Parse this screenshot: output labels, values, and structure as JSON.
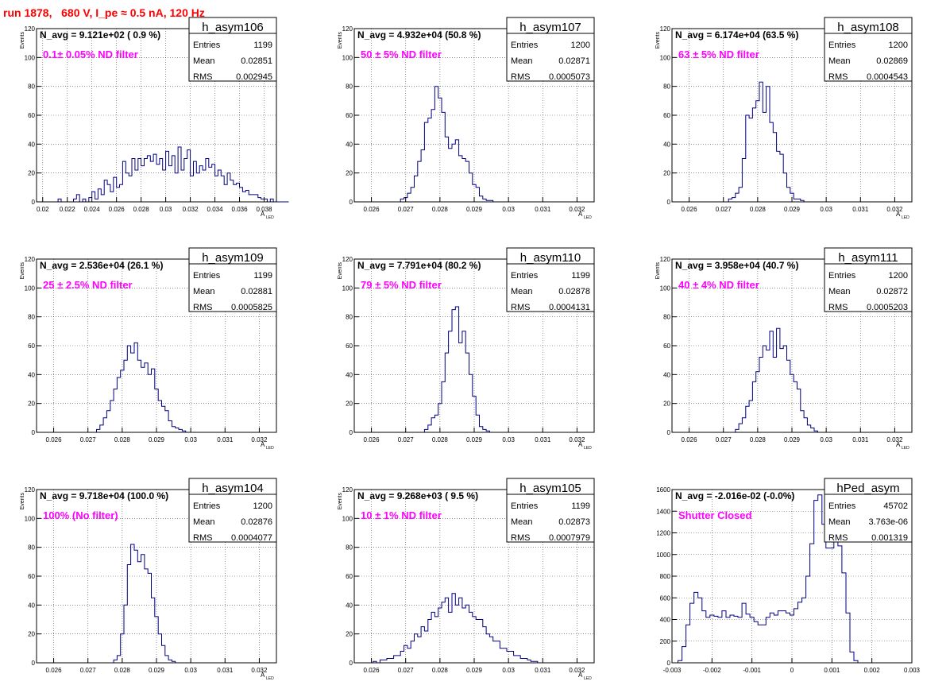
{
  "header": {
    "run_title": "run 1878,   680 V, I_pe ≈ 0.5 nA, 120 Hz"
  },
  "colors": {
    "title_text": "#ff0000",
    "annotation_text": "#ff00ff",
    "histogram_line": "#000080",
    "grid": "#000000"
  },
  "chart_data": [
    {
      "type": "histogram",
      "hist_name": "h_asym106",
      "stats": {
        "Entries": "1199",
        "Mean": "0.02851",
        "RMS": "0.002945"
      },
      "navg_label": "N_avg = 9.121e+02 ( 0.9 %)",
      "annotation": "0.1± 0.05% ND filter",
      "ylabel": "Events",
      "xlim": [
        0.0195,
        0.039
      ],
      "ylim": [
        0,
        120
      ],
      "xticks": [
        0.02,
        0.022,
        0.024,
        0.026,
        0.028,
        0.03,
        0.032,
        0.034,
        0.036,
        0.038
      ],
      "xtick_labels": [
        "0.02",
        "0.022",
        "0.024",
        "0.026",
        "0.028",
        "0.03",
        "0.032",
        "0.034",
        "0.036",
        "0.038"
      ],
      "yticks": [
        0,
        20,
        40,
        60,
        80,
        100,
        120
      ],
      "bin_start": 0.0205,
      "bin_width": 0.00025,
      "counts": [
        0,
        0,
        0,
        2,
        0,
        0,
        0,
        0,
        2,
        5,
        0,
        2,
        0,
        3,
        7,
        2,
        9,
        5,
        15,
        12,
        7,
        17,
        10,
        12,
        28,
        20,
        18,
        30,
        22,
        30,
        25,
        30,
        32,
        28,
        33,
        26,
        30,
        22,
        35,
        25,
        32,
        20,
        38,
        22,
        30,
        36,
        18,
        28,
        20,
        25,
        22,
        30,
        24,
        26,
        18,
        22,
        18,
        12,
        20,
        15,
        12,
        13,
        10,
        7,
        8,
        5,
        5,
        5,
        3,
        2,
        2,
        0,
        2,
        0,
        0,
        0,
        0,
        0
      ],
      "xlabel_main": "A",
      "xlabel_sub": "LED"
    },
    {
      "type": "histogram",
      "hist_name": "h_asym107",
      "stats": {
        "Entries": "1200",
        "Mean": "0.02871",
        "RMS": "0.0005073"
      },
      "navg_label": "N_avg = 4.932e+04 (50.8 %)",
      "annotation": "50 ± 5% ND filter",
      "ylabel": "Events",
      "xlim": [
        0.0255,
        0.0325
      ],
      "ylim": [
        0,
        120
      ],
      "xticks": [
        0.026,
        0.027,
        0.028,
        0.029,
        0.03,
        0.031,
        0.032
      ],
      "xtick_labels": [
        "0.026",
        "0.027",
        "0.028",
        "0.029",
        "0.03",
        "0.031",
        "0.032"
      ],
      "yticks": [
        0,
        20,
        40,
        60,
        80,
        100,
        120
      ],
      "bin_start": 0.02685,
      "bin_width": 0.0001,
      "counts": [
        2,
        3,
        6,
        10,
        18,
        28,
        36,
        55,
        58,
        64,
        80,
        72,
        62,
        45,
        37,
        40,
        43,
        32,
        30,
        28,
        20,
        12,
        10,
        4,
        2,
        1,
        1
      ],
      "xlabel_main": "A",
      "xlabel_sub": "LED"
    },
    {
      "type": "histogram",
      "hist_name": "h_asym108",
      "stats": {
        "Entries": "1200",
        "Mean": "0.02869",
        "RMS": "0.0004543"
      },
      "navg_label": "N_avg = 6.174e+04 (63.5 %)",
      "annotation": "63 ± 5% ND filter",
      "ylabel": "Events",
      "xlim": [
        0.0255,
        0.0325
      ],
      "ylim": [
        0,
        120
      ],
      "xticks": [
        0.026,
        0.027,
        0.028,
        0.029,
        0.03,
        0.031,
        0.032
      ],
      "xtick_labels": [
        "0.026",
        "0.027",
        "0.028",
        "0.029",
        "0.03",
        "0.031",
        "0.032"
      ],
      "yticks": [
        0,
        20,
        40,
        60,
        80,
        100,
        120
      ],
      "bin_start": 0.02715,
      "bin_width": 0.0001,
      "counts": [
        2,
        3,
        6,
        10,
        30,
        60,
        58,
        65,
        70,
        83,
        62,
        80,
        55,
        48,
        35,
        33,
        20,
        10,
        6,
        2,
        2,
        1
      ],
      "xlabel_main": "A",
      "xlabel_sub": "LED"
    },
    {
      "type": "histogram",
      "hist_name": "h_asym109",
      "stats": {
        "Entries": "1199",
        "Mean": "0.02881",
        "RMS": "0.0005825"
      },
      "navg_label": "N_avg = 2.536e+04 (26.1 %)",
      "annotation": "25 ± 2.5% ND filter",
      "ylabel": "Events",
      "xlim": [
        0.0255,
        0.0325
      ],
      "ylim": [
        0,
        120
      ],
      "xticks": [
        0.026,
        0.027,
        0.028,
        0.029,
        0.03,
        0.031,
        0.032
      ],
      "xtick_labels": [
        "0.026",
        "0.027",
        "0.028",
        "0.029",
        "0.03",
        "0.031",
        "0.032"
      ],
      "yticks": [
        0,
        20,
        40,
        60,
        80,
        100,
        120
      ],
      "bin_start": 0.02725,
      "bin_width": 0.0001,
      "counts": [
        2,
        5,
        10,
        15,
        22,
        30,
        38,
        43,
        50,
        60,
        55,
        62,
        50,
        45,
        48,
        40,
        44,
        30,
        22,
        18,
        15,
        8,
        4,
        3,
        2,
        1
      ],
      "xlabel_main": "A",
      "xlabel_sub": "LED"
    },
    {
      "type": "histogram",
      "hist_name": "h_asym110",
      "stats": {
        "Entries": "1199",
        "Mean": "0.02878",
        "RMS": "0.0004131"
      },
      "navg_label": "N_avg = 7.791e+04 (80.2 %)",
      "annotation": "79 ± 5% ND filter",
      "ylabel": "Events",
      "xlim": [
        0.0255,
        0.0325
      ],
      "ylim": [
        0,
        120
      ],
      "xticks": [
        0.026,
        0.027,
        0.028,
        0.029,
        0.03,
        0.031,
        0.032
      ],
      "xtick_labels": [
        "0.026",
        "0.027",
        "0.028",
        "0.029",
        "0.03",
        "0.031",
        "0.032"
      ],
      "yticks": [
        0,
        20,
        40,
        60,
        80,
        100,
        120
      ],
      "bin_start": 0.02755,
      "bin_width": 0.0001,
      "counts": [
        2,
        5,
        10,
        12,
        20,
        35,
        55,
        70,
        85,
        87,
        62,
        70,
        55,
        40,
        25,
        12,
        4,
        2,
        1
      ],
      "xlabel_main": "A",
      "xlabel_sub": "LED"
    },
    {
      "type": "histogram",
      "hist_name": "h_asym111",
      "stats": {
        "Entries": "1200",
        "Mean": "0.02872",
        "RMS": "0.0005203"
      },
      "navg_label": "N_avg = 3.958e+04 (40.7 %)",
      "annotation": "40 ± 4% ND filter",
      "ylabel": "Events",
      "xlim": [
        0.0255,
        0.0325
      ],
      "ylim": [
        0,
        120
      ],
      "xticks": [
        0.026,
        0.027,
        0.028,
        0.029,
        0.03,
        0.031,
        0.032
      ],
      "xtick_labels": [
        "0.026",
        "0.027",
        "0.028",
        "0.029",
        "0.03",
        "0.031",
        "0.032"
      ],
      "yticks": [
        0,
        20,
        40,
        60,
        80,
        100,
        120
      ],
      "bin_start": 0.02735,
      "bin_width": 0.0001,
      "counts": [
        2,
        6,
        10,
        18,
        22,
        35,
        42,
        52,
        60,
        57,
        70,
        52,
        72,
        58,
        60,
        50,
        40,
        35,
        30,
        15,
        10,
        5,
        3,
        1
      ],
      "xlabel_main": "A",
      "xlabel_sub": "LED"
    },
    {
      "type": "histogram",
      "hist_name": "h_asym104",
      "stats": {
        "Entries": "1200",
        "Mean": "0.02876",
        "RMS": "0.0004077"
      },
      "navg_label": "N_avg = 9.718e+04 (100.0 %)",
      "annotation": "100% (No filter)",
      "ylabel": "Events",
      "xlim": [
        0.0255,
        0.0325
      ],
      "ylim": [
        0,
        120
      ],
      "xticks": [
        0.026,
        0.027,
        0.028,
        0.029,
        0.03,
        0.031,
        0.032
      ],
      "xtick_labels": [
        "0.026",
        "0.027",
        "0.028",
        "0.029",
        "0.03",
        "0.031",
        "0.032"
      ],
      "yticks": [
        0,
        20,
        40,
        60,
        80,
        100,
        120
      ],
      "bin_start": 0.02775,
      "bin_width": 0.0001,
      "counts": [
        2,
        5,
        20,
        40,
        68,
        82,
        78,
        70,
        75,
        65,
        62,
        45,
        32,
        20,
        12,
        5,
        2,
        1
      ],
      "xlabel_main": "A",
      "xlabel_sub": "LED"
    },
    {
      "type": "histogram",
      "hist_name": "h_asym105",
      "stats": {
        "Entries": "1199",
        "Mean": "0.02873",
        "RMS": "0.0007979"
      },
      "navg_label": "N_avg = 9.268e+03 ( 9.5 %)",
      "annotation": "10 ± 1% ND filter",
      "ylabel": "Events",
      "xlim": [
        0.0255,
        0.0325
      ],
      "ylim": [
        0,
        120
      ],
      "xticks": [
        0.026,
        0.027,
        0.028,
        0.029,
        0.03,
        0.031,
        0.032
      ],
      "xtick_labels": [
        "0.026",
        "0.027",
        "0.028",
        "0.029",
        "0.03",
        "0.031",
        "0.032"
      ],
      "yticks": [
        0,
        20,
        40,
        60,
        80,
        100,
        120
      ],
      "bin_start": 0.02605,
      "bin_width": 0.0001,
      "counts": [
        1,
        0,
        2,
        2,
        3,
        3,
        5,
        5,
        8,
        12,
        10,
        15,
        20,
        18,
        25,
        22,
        30,
        35,
        32,
        38,
        42,
        45,
        35,
        48,
        40,
        45,
        38,
        40,
        35,
        32,
        30,
        30,
        25,
        20,
        18,
        15,
        15,
        10,
        10,
        8,
        8,
        5,
        5,
        3,
        3,
        2,
        1,
        1
      ],
      "xlabel_main": "A",
      "xlabel_sub": "LED"
    },
    {
      "type": "histogram",
      "hist_name": "hPed_asym",
      "stats": {
        "Entries": "45702",
        "Mean": "3.763e-06",
        "RMS": "0.001319"
      },
      "navg_label": "N_avg = -2.016e-02 (-0.0%)",
      "annotation": "Shutter Closed",
      "ylabel": "",
      "xlim": [
        -0.003,
        0.003
      ],
      "ylim": [
        0,
        1600
      ],
      "xticks": [
        -0.003,
        -0.002,
        -0.001,
        0,
        0.001,
        0.002,
        0.003
      ],
      "xtick_labels": [
        "-0.003",
        "-0.002",
        "-0.001",
        "0",
        "0.001",
        "0.002",
        "0.003"
      ],
      "yticks": [
        0,
        200,
        400,
        600,
        800,
        1000,
        1200,
        1400,
        1600
      ],
      "bin_start": -0.00285,
      "bin_width": 0.0001,
      "counts": [
        20,
        150,
        350,
        550,
        650,
        600,
        480,
        420,
        440,
        430,
        420,
        480,
        420,
        440,
        430,
        420,
        550,
        450,
        420,
        380,
        350,
        350,
        420,
        460,
        440,
        480,
        480,
        460,
        440,
        500,
        560,
        600,
        800,
        1100,
        1500,
        1550,
        1280,
        1060,
        1060,
        1200,
        1080,
        830,
        460,
        100,
        20,
        0
      ],
      "xlabel_main": "",
      "xlabel_sub": ""
    }
  ]
}
